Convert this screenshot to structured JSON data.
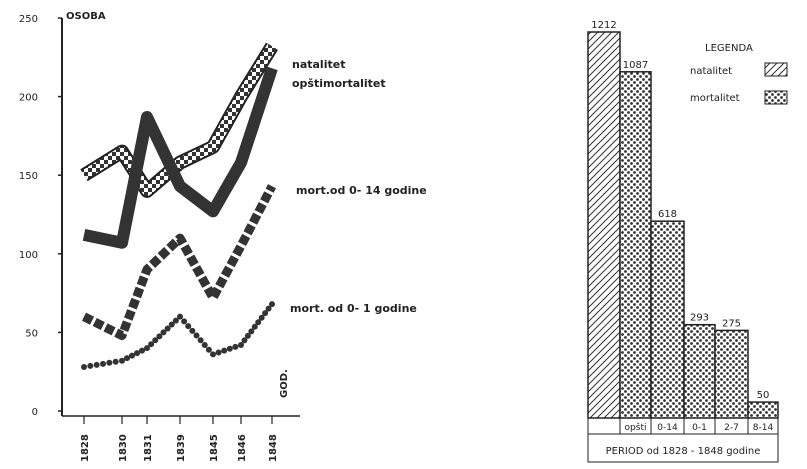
{
  "chart_data": [
    {
      "type": "line",
      "ylabel": "OSOBA",
      "xlabel": "GOD.",
      "ylim": [
        0,
        250
      ],
      "yticks": [
        0,
        50,
        100,
        150,
        200,
        250
      ],
      "x": [
        "1828",
        "1830",
        "1831",
        "1839",
        "1845",
        "1846",
        "1848"
      ],
      "series": [
        {
          "name": "natalitet",
          "style": "hollow-checker",
          "values": [
            150,
            165,
            140,
            158,
            168,
            200,
            232
          ]
        },
        {
          "name": "opštimortalitet",
          "style": "solid-thick",
          "values": [
            112,
            107,
            187,
            143,
            127,
            158,
            218
          ]
        },
        {
          "name": "mort.od 0- 14 godine",
          "style": "dashed-thick",
          "values": [
            60,
            48,
            90,
            110,
            72,
            105,
            143
          ]
        },
        {
          "name": "mort. od 0- 1 godine",
          "style": "dotted",
          "values": [
            28,
            32,
            40,
            60,
            36,
            42,
            68
          ]
        }
      ]
    },
    {
      "type": "bar",
      "title": "LEGENDA",
      "legend": [
        {
          "name": "natalitet",
          "pattern": "hatch"
        },
        {
          "name": "mortalitet",
          "pattern": "dots"
        }
      ],
      "categories": [
        "",
        "opšti",
        "0-14",
        "0-1",
        "2-7",
        "8-14"
      ],
      "values": [
        1212,
        1087,
        618,
        293,
        275,
        50
      ],
      "value_labels": [
        "1212",
        "1087",
        "618",
        "293",
        "275",
        "50"
      ],
      "patterns": [
        "hatch",
        "dots",
        "dots",
        "dots",
        "dots",
        "dots"
      ],
      "xlabel": "PERIOD od 1828 - 1848 godine"
    }
  ]
}
